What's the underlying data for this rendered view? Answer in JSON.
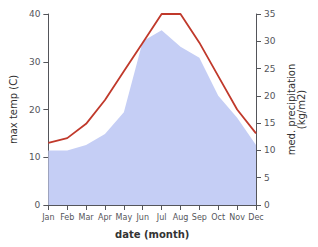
{
  "chart_data": {
    "type": "line",
    "xlabel": "date (month)",
    "ylabel": "max temp (C)",
    "y2label": "med. precipitation\n(kg/m2)",
    "categories": [
      "Jan",
      "Feb",
      "Mar",
      "Apr",
      "May",
      "Jun",
      "Jul",
      "Aug",
      "Sep",
      "Oct",
      "Nov",
      "Dec"
    ],
    "series": [
      {
        "type": "area",
        "axis": "y2",
        "color": "#c5cef5",
        "values": [
          10,
          10,
          11,
          13,
          17,
          30,
          32,
          29,
          27,
          20,
          16,
          11
        ]
      },
      {
        "type": "line",
        "color": "#c0392b",
        "values": [
          13,
          14,
          17,
          22,
          28,
          34,
          40,
          40,
          34,
          27,
          20,
          15
        ]
      }
    ],
    "ylim": [
      0,
      40
    ],
    "yticks": [
      0,
      10,
      20,
      30,
      40
    ],
    "y2lim": [
      0,
      35
    ],
    "y2ticks": [
      0,
      5,
      10,
      15,
      20,
      25,
      30,
      35
    ],
    "grid": false
  }
}
